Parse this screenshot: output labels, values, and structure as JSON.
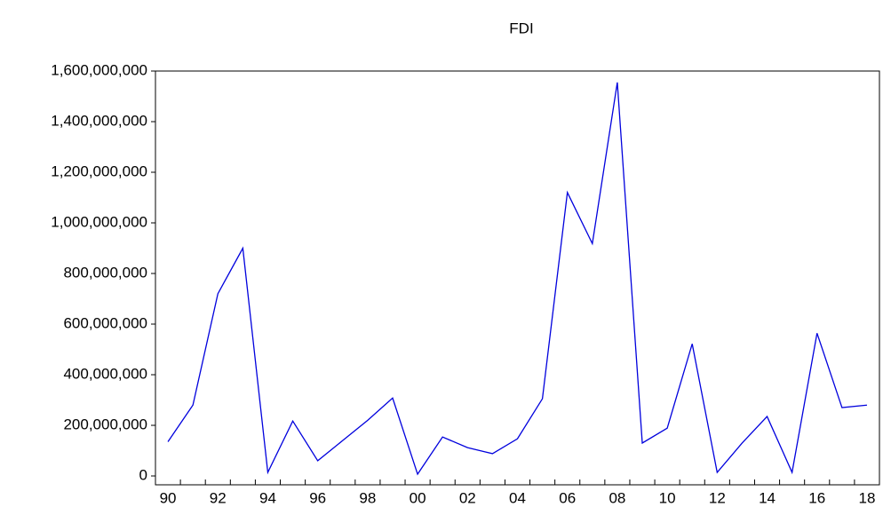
{
  "chart_data": {
    "type": "line",
    "title": "FDI",
    "categories": [
      "90",
      null,
      "92",
      null,
      "94",
      null,
      "96",
      null,
      "98",
      null,
      "00",
      null,
      "02",
      null,
      "04",
      null,
      "06",
      null,
      "08",
      null,
      "10",
      null,
      "12",
      null,
      "14",
      null,
      "16",
      null,
      "18"
    ],
    "values": [
      135000000,
      280000000,
      720000000,
      900000000,
      14000000,
      217000000,
      60000000,
      140000000,
      220000000,
      308000000,
      7000000,
      154000000,
      112000000,
      88000000,
      147000000,
      305000000,
      1120000000,
      918000000,
      1555000000,
      130000000,
      189000000,
      522000000,
      14000000,
      130000000,
      235000000,
      14000000,
      564000000,
      270000000,
      280000000
    ],
    "color": "#0000dd",
    "ylim": [
      -35000000,
      1600000000
    ],
    "yticks": [
      {
        "value": 0,
        "label": "0"
      },
      {
        "value": 200000000,
        "label": "200,000,000"
      },
      {
        "value": 400000000,
        "label": "400,000,000"
      },
      {
        "value": 600000000,
        "label": "600,000,000"
      },
      {
        "value": 800000000,
        "label": "800,000,000"
      },
      {
        "value": 1000000000,
        "label": "1,000,000,000"
      },
      {
        "value": 1200000000,
        "label": "1,200,000,000"
      },
      {
        "value": 1400000000,
        "label": "1,400,000,000"
      },
      {
        "value": 1600000000,
        "label": "1,600,000,000"
      }
    ]
  }
}
